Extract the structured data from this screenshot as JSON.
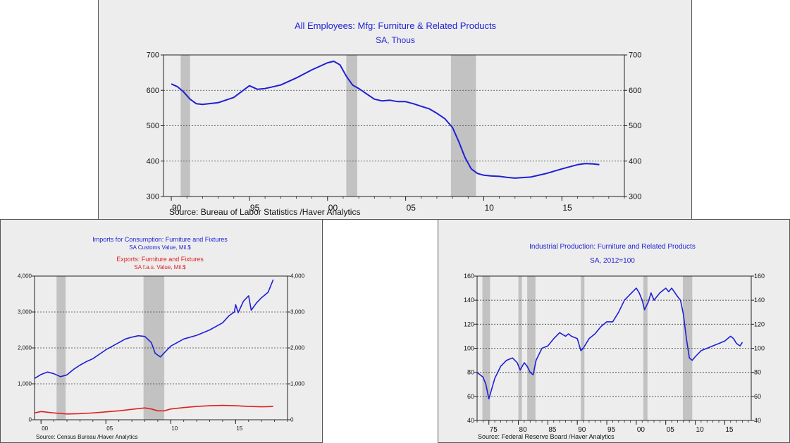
{
  "chart_data": [
    {
      "id": "employment",
      "type": "line",
      "title": "All Employees: Mfg: Furniture & Related Products",
      "subtitle": "SA, Thous",
      "source": "Source:  Bureau of Labor Statistics /Haver Analytics",
      "xlim": [
        1989.5,
        2019
      ],
      "ylim": [
        300,
        700
      ],
      "yticks": [
        300,
        400,
        500,
        600,
        700
      ],
      "xticks": [
        {
          "v": 1990,
          "label": "90"
        },
        {
          "v": 1995,
          "label": "95"
        },
        {
          "v": 2000,
          "label": "00"
        },
        {
          "v": 2005,
          "label": "05"
        },
        {
          "v": 2010,
          "label": "10"
        },
        {
          "v": 2015,
          "label": "15"
        }
      ],
      "grid": true,
      "recessions": [
        [
          1990.6,
          1991.2
        ],
        [
          2001.2,
          2001.9
        ],
        [
          2007.9,
          2009.5
        ]
      ],
      "series": [
        {
          "color": "#1f1fd6",
          "x": [
            1990.0,
            1990.4,
            1990.8,
            1991.2,
            1991.6,
            1992,
            1993,
            1994,
            1994.6,
            1995,
            1995.5,
            1996,
            1997,
            1998,
            1999,
            2000,
            2000.4,
            2000.8,
            2001.2,
            2001.6,
            2002,
            2002.5,
            2003,
            2003.5,
            2004,
            2004.5,
            2005,
            2005.5,
            2006,
            2006.5,
            2007,
            2007.5,
            2008,
            2008.4,
            2008.8,
            2009.2,
            2009.6,
            2010,
            2010.5,
            2011,
            2011.5,
            2012,
            2013,
            2014,
            2015,
            2016,
            2016.5,
            2017,
            2017.4
          ],
          "y": [
            618,
            610,
            595,
            575,
            562,
            560,
            565,
            580,
            600,
            613,
            603,
            605,
            615,
            635,
            658,
            678,
            682,
            672,
            640,
            615,
            605,
            590,
            575,
            570,
            572,
            568,
            568,
            562,
            555,
            548,
            535,
            520,
            495,
            455,
            410,
            378,
            365,
            360,
            358,
            357,
            354,
            352,
            355,
            365,
            378,
            390,
            393,
            392,
            390
          ]
        }
      ]
    },
    {
      "id": "trade",
      "type": "line",
      "title": "Imports for Consumption: Furniture and Fixtures",
      "subtitle": "SA    Customs Value, Mil.$",
      "title2": "Exports: Furniture and Fixtures",
      "subtitle2": "SA    f.a.s. Value, Mil.$",
      "source": "Source:  Census Bureau /Haver Analytics",
      "xlim": [
        1999.5,
        2019
      ],
      "ylim": [
        0,
        4000
      ],
      "yticks": [
        {
          "v": 0,
          "label": "0"
        },
        {
          "v": 1000,
          "label": "1,000"
        },
        {
          "v": 2000,
          "label": "2,000"
        },
        {
          "v": 3000,
          "label": "3,000"
        },
        {
          "v": 4000,
          "label": "4,000"
        }
      ],
      "xticks": [
        {
          "v": 2000,
          "label": "00"
        },
        {
          "v": 2005,
          "label": "05"
        },
        {
          "v": 2010,
          "label": "10"
        },
        {
          "v": 2015,
          "label": "15"
        }
      ],
      "grid": true,
      "recessions": [
        [
          2001.2,
          2001.9
        ],
        [
          2007.9,
          2009.5
        ]
      ],
      "series": [
        {
          "color": "#1f1fd6",
          "x": [
            1999.5,
            2000,
            2000.5,
            2001,
            2001.5,
            2002,
            2002.5,
            2003,
            2003.5,
            2004,
            2005,
            2006,
            2006.5,
            2007,
            2007.5,
            2008,
            2008.5,
            2008.8,
            2009.2,
            2009.6,
            2010,
            2011,
            2012,
            2013,
            2014,
            2014.5,
            2014.9,
            2015,
            2015.2,
            2015.6,
            2016,
            2016.2,
            2016.6,
            2017,
            2017.5,
            2017.9
          ],
          "y": [
            1150,
            1260,
            1330,
            1280,
            1200,
            1250,
            1400,
            1520,
            1620,
            1700,
            1950,
            2150,
            2250,
            2300,
            2340,
            2320,
            2150,
            1850,
            1750,
            1900,
            2050,
            2250,
            2350,
            2500,
            2700,
            2900,
            3000,
            3200,
            2980,
            3300,
            3450,
            3050,
            3250,
            3400,
            3550,
            3900
          ]
        },
        {
          "color": "#e02020",
          "x": [
            1999.5,
            2000,
            2001,
            2002,
            2003,
            2004,
            2005,
            2006,
            2007,
            2008,
            2008.5,
            2009,
            2009.5,
            2010,
            2011,
            2012,
            2013,
            2014,
            2015,
            2016,
            2017,
            2017.9
          ],
          "y": [
            190,
            230,
            190,
            160,
            170,
            190,
            220,
            250,
            290,
            330,
            300,
            250,
            250,
            300,
            340,
            370,
            390,
            400,
            390,
            370,
            360,
            370
          ]
        }
      ]
    },
    {
      "id": "production",
      "type": "line",
      "title": "Industrial Production: Furniture and Related Products",
      "subtitle": "SA, 2012=100",
      "source": "Source:  Federal Reserve Board /Haver Analytics",
      "xlim": [
        1973,
        2019.5
      ],
      "ylim": [
        40,
        160
      ],
      "yticks": [
        40,
        60,
        80,
        100,
        120,
        140,
        160
      ],
      "xticks": [
        {
          "v": 1975,
          "label": "75"
        },
        {
          "v": 1980,
          "label": "80"
        },
        {
          "v": 1985,
          "label": "85"
        },
        {
          "v": 1990,
          "label": "90"
        },
        {
          "v": 1995,
          "label": "95"
        },
        {
          "v": 2000,
          "label": "00"
        },
        {
          "v": 2005,
          "label": "05"
        },
        {
          "v": 2010,
          "label": "10"
        },
        {
          "v": 2015,
          "label": "15"
        }
      ],
      "grid": true,
      "recessions": [
        [
          1973.9,
          1975.2
        ],
        [
          1980.0,
          1980.6
        ],
        [
          1981.5,
          1982.9
        ],
        [
          1990.6,
          1991.2
        ],
        [
          2001.2,
          2001.9
        ],
        [
          2007.9,
          2009.5
        ]
      ],
      "series": [
        {
          "color": "#1f1fd6",
          "x": [
            1973,
            1974,
            1974.5,
            1975,
            1975.3,
            1976,
            1977,
            1978,
            1979,
            1979.8,
            1980.3,
            1981,
            1981.5,
            1982,
            1982.5,
            1983,
            1984,
            1985,
            1986,
            1987,
            1988,
            1988.5,
            1989,
            1990,
            1990.6,
            1991,
            1992,
            1993,
            1994,
            1995,
            1996,
            1997,
            1998,
            1999,
            2000,
            2000.5,
            2001,
            2001.4,
            2002,
            2002.5,
            2003,
            2004,
            2005,
            2005.5,
            2006,
            2007,
            2007.5,
            2008,
            2008.5,
            2009,
            2009.5,
            2010,
            2011,
            2012,
            2013,
            2014,
            2015,
            2016,
            2016.5,
            2017,
            2017.6,
            2018
          ],
          "y": [
            80,
            76,
            70,
            58,
            63,
            75,
            85,
            90,
            92,
            88,
            82,
            88,
            85,
            80,
            78,
            90,
            100,
            102,
            108,
            113,
            110,
            112,
            110,
            108,
            98,
            100,
            108,
            112,
            118,
            122,
            122,
            130,
            140,
            145,
            150,
            146,
            140,
            132,
            138,
            146,
            140,
            146,
            150,
            147,
            150,
            143,
            140,
            128,
            108,
            92,
            90,
            93,
            98,
            100,
            102,
            104,
            106,
            110,
            108,
            104,
            102,
            105
          ]
        }
      ]
    }
  ]
}
